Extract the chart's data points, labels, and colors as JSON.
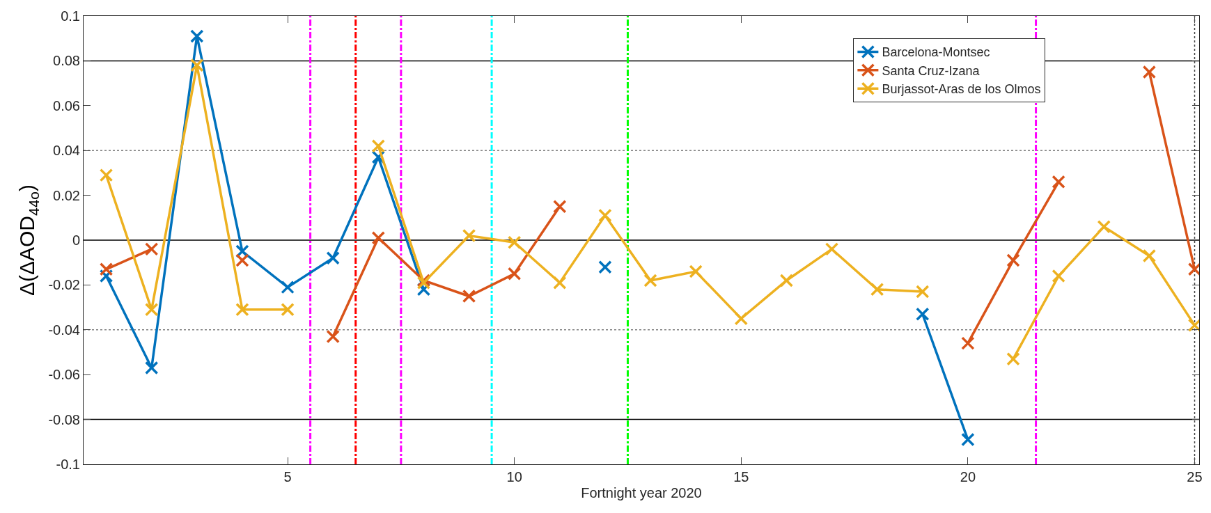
{
  "chart_data": {
    "type": "line",
    "xlabel": "Fortnight year 2020",
    "ylabel": "Δ(ΔAOD$_{44o}$)",
    "x": [
      1,
      2,
      3,
      4,
      5,
      6,
      7,
      8,
      9,
      10,
      11,
      12,
      13,
      14,
      15,
      16,
      17,
      18,
      19,
      20,
      21,
      22,
      23,
      24,
      25
    ],
    "xlim": [
      0.5,
      25.1
    ],
    "xticks": [
      5,
      10,
      15,
      20,
      25
    ],
    "ylim": [
      -0.1,
      0.1
    ],
    "yticks": [
      -0.1,
      -0.08,
      -0.06,
      -0.04,
      -0.02,
      0,
      0.02,
      0.04,
      0.06,
      0.08,
      0.1
    ],
    "marker": "cross",
    "line_style": "solid",
    "grid": false,
    "legend": "top right",
    "series": [
      {
        "name": "Barcelona-Montsec",
        "color": "#0072bd",
        "values": [
          -0.016,
          -0.057,
          0.091,
          -0.005,
          -0.021,
          -0.008,
          0.037,
          -0.022,
          null,
          null,
          null,
          -0.012,
          null,
          null,
          null,
          null,
          null,
          null,
          -0.033,
          -0.089,
          null,
          null,
          null,
          null,
          null
        ]
      },
      {
        "name": "Santa Cruz-Izana",
        "color": "#d95319",
        "values": [
          -0.013,
          -0.004,
          null,
          -0.009,
          null,
          -0.043,
          0.001,
          -0.018,
          -0.025,
          -0.015,
          0.015,
          null,
          null,
          null,
          null,
          null,
          null,
          null,
          null,
          -0.046,
          -0.009,
          0.026,
          null,
          0.075,
          -0.013
        ]
      },
      {
        "name": "Burjassot-Aras de los Olmos",
        "color": "#edb120",
        "values": [
          0.029,
          -0.031,
          0.078,
          -0.031,
          -0.031,
          null,
          0.042,
          -0.019,
          0.002,
          -0.001,
          -0.019,
          0.011,
          -0.018,
          -0.014,
          -0.035,
          -0.018,
          -0.004,
          -0.022,
          -0.023,
          null,
          -0.053,
          -0.016,
          0.006,
          -0.007,
          -0.038
        ]
      }
    ],
    "ref_lines": [
      {
        "axis": "y",
        "value": 0.08,
        "color": "#000000",
        "line_style": "solid"
      },
      {
        "axis": "y",
        "value": 0,
        "color": "#000000",
        "line_style": "solid"
      },
      {
        "axis": "y",
        "value": -0.08,
        "color": "#000000",
        "line_style": "solid"
      },
      {
        "axis": "y",
        "value": 0.04,
        "color": "#808080",
        "line_style": "dotted"
      },
      {
        "axis": "y",
        "value": -0.04,
        "color": "#808080",
        "line_style": "dotted"
      },
      {
        "axis": "x",
        "value": 25,
        "color": "#404040",
        "line_style": "dotted"
      },
      {
        "axis": "x",
        "value": 5.5,
        "color": "#ff00ff",
        "line_style": "dashdot"
      },
      {
        "axis": "x",
        "value": 6.5,
        "color": "#ff0000",
        "line_style": "dashdot"
      },
      {
        "axis": "x",
        "value": 7.5,
        "color": "#ff00ff",
        "line_style": "dashdot"
      },
      {
        "axis": "x",
        "value": 9.5,
        "color": "#00ffff",
        "line_style": "dashdot"
      },
      {
        "axis": "x",
        "value": 12.5,
        "color": "#00ff00",
        "line_style": "dashdot"
      },
      {
        "axis": "x",
        "value": 21.5,
        "color": "#ff00ff",
        "line_style": "dashdot"
      }
    ]
  }
}
